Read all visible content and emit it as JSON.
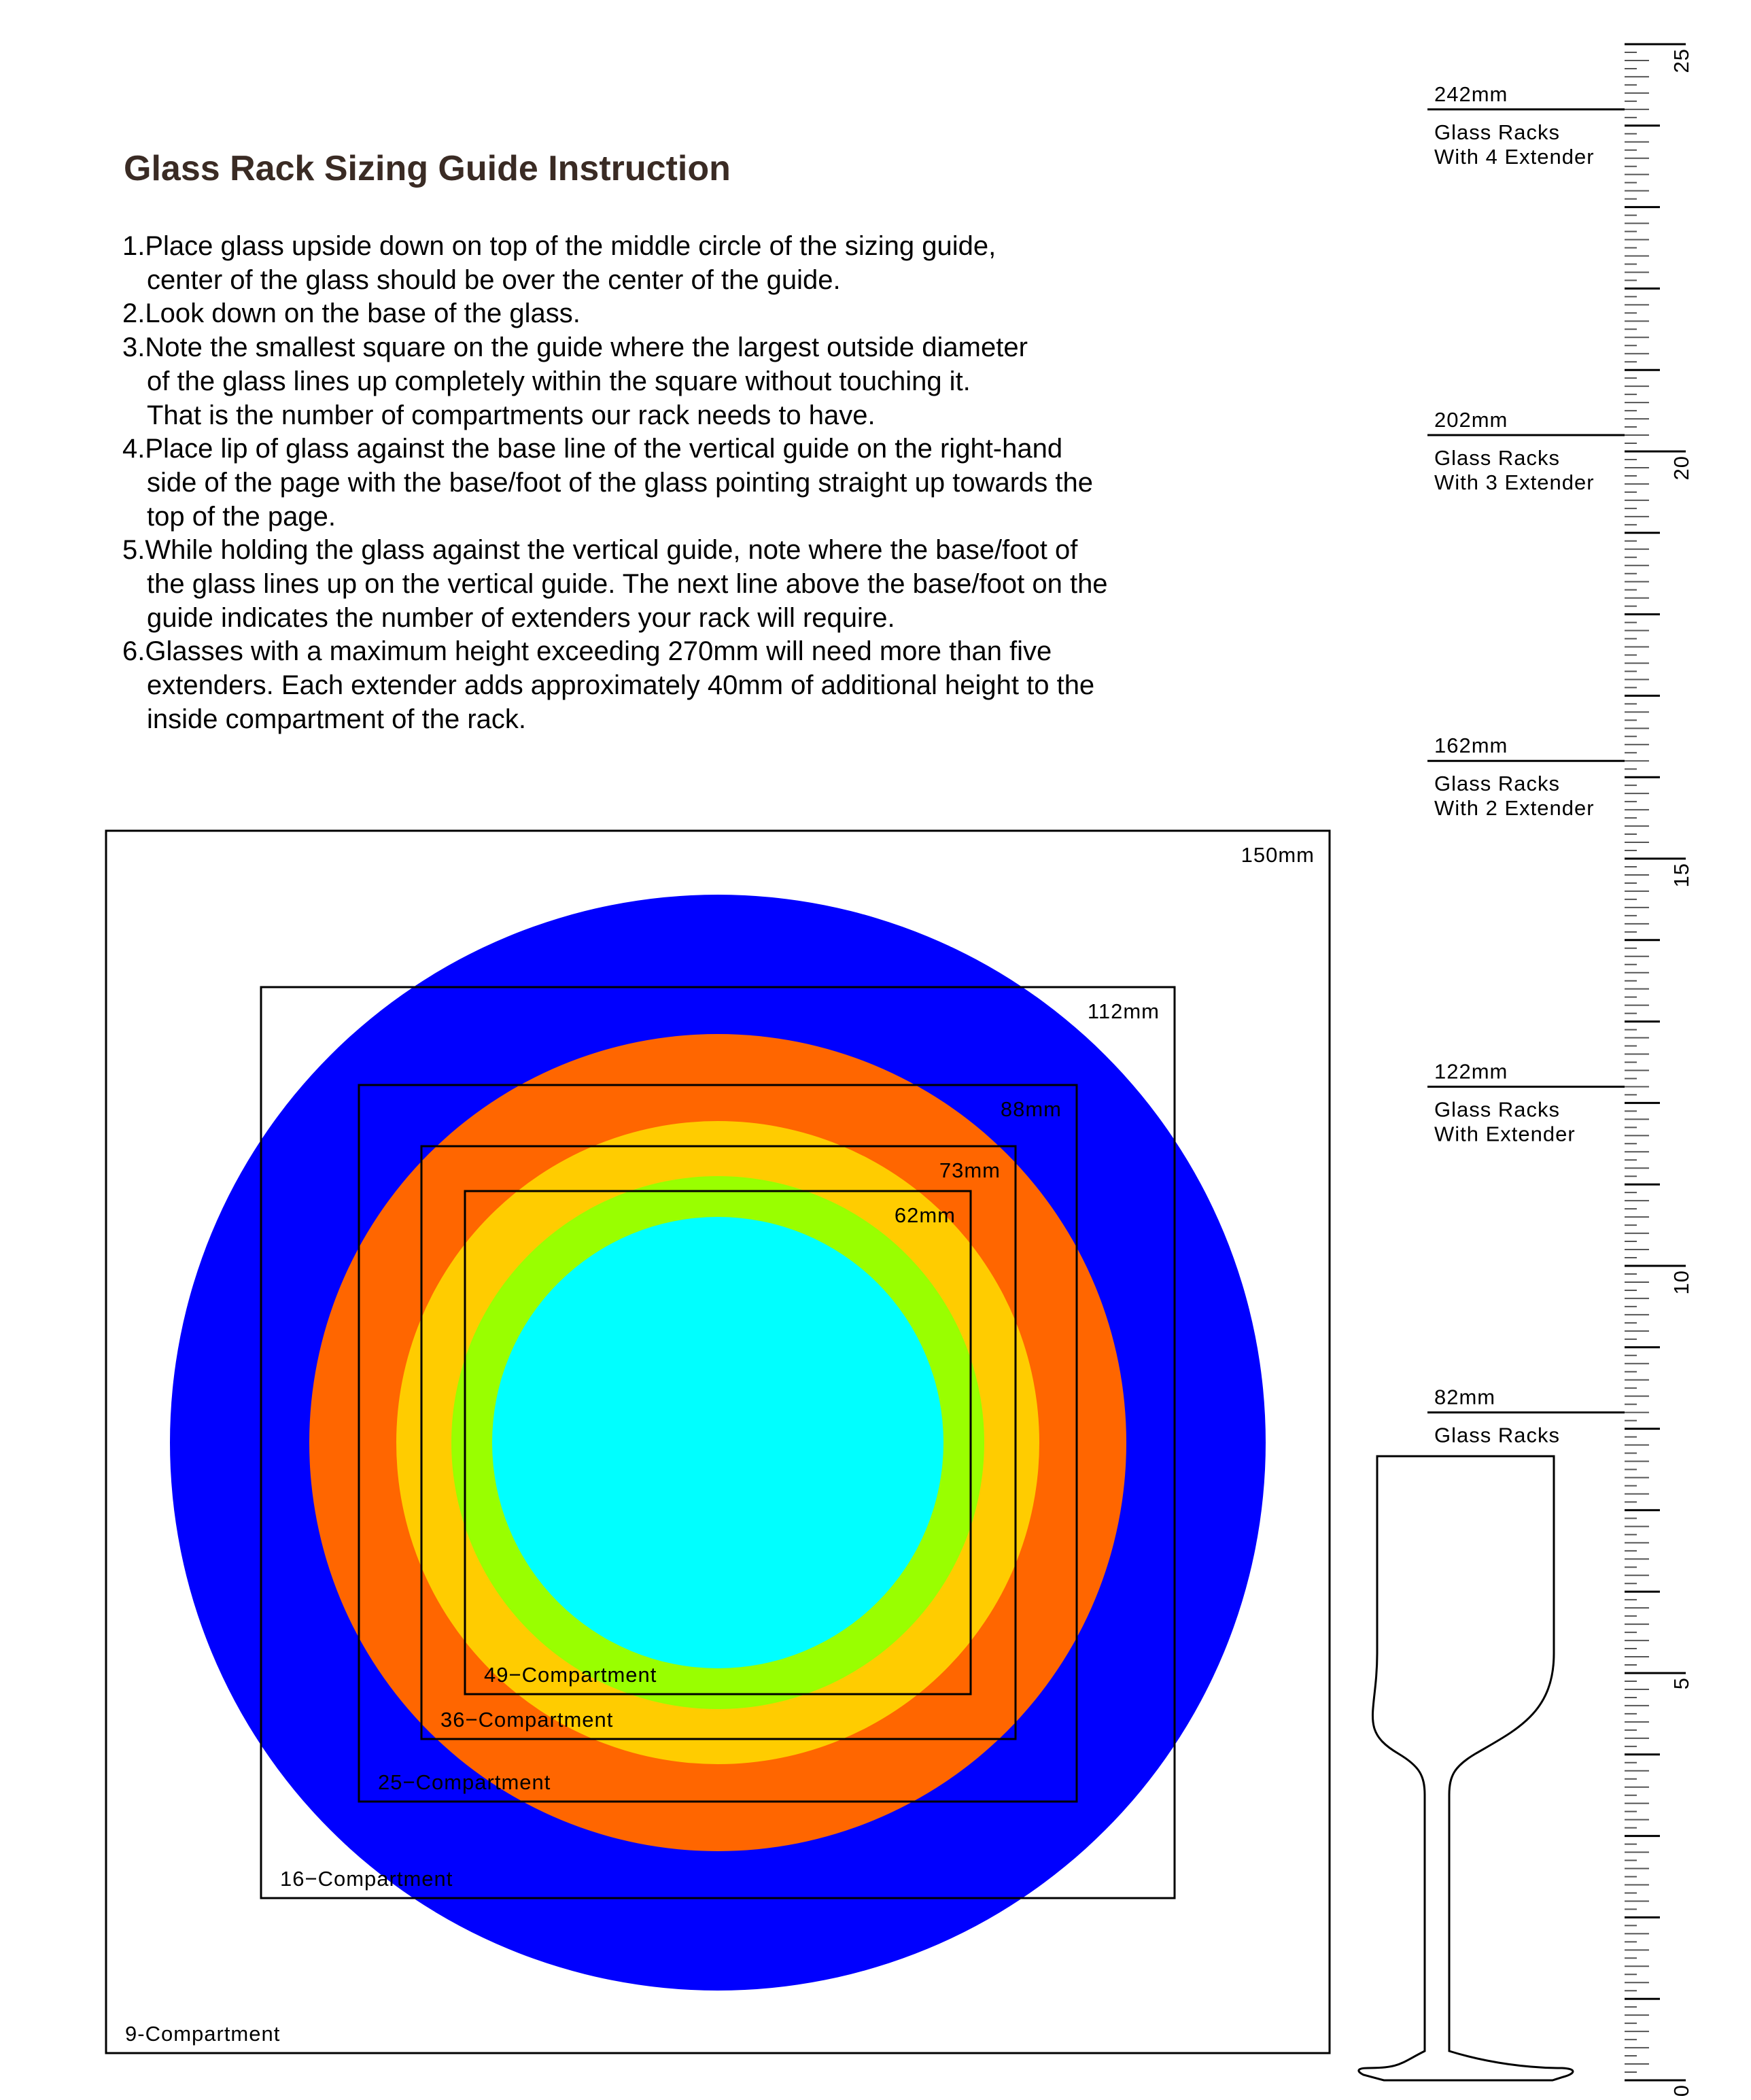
{
  "title": "Glass Rack Sizing Guide Instruction",
  "instructions": [
    [
      "1.Place glass upside down on top of the middle circle of the sizing guide,",
      "center of the glass should be over the center of the guide."
    ],
    [
      "2.Look down on the base of the glass."
    ],
    [
      "3.Note the smallest square on the guide where the largest outside diameter",
      "of the glass lines up completely within the square without touching it.",
      "That is the number of compartments our rack needs to have."
    ],
    [
      "4.Place lip of glass against the base line of the vertical guide on the right-hand",
      "side of the page with the base/foot of the glass pointing straight up towards the",
      "top of the page."
    ],
    [
      "5.While holding the glass against the vertical guide, note where the base/foot of",
      "the glass lines up on the vertical guide. The next line above the base/foot on the",
      "guide indicates the number of extenders your rack will require."
    ],
    [
      "6.Glasses with a maximum height exceeding 270mm will need more than five",
      "extenders. Each extender adds approximately 40mm of additional height to the",
      "inside compartment of the rack."
    ]
  ],
  "circles": [
    {
      "color": "#0000ff"
    },
    {
      "color": "#ff6600"
    },
    {
      "color": "#ffcc00"
    },
    {
      "color": "#99ff00"
    },
    {
      "color": "#00ffff"
    }
  ],
  "squares": [
    {
      "size": "150mm",
      "label": "9-Compartment"
    },
    {
      "size": "112mm",
      "label": "16−Compartment"
    },
    {
      "size": "88mm",
      "label": "25−Compartment"
    },
    {
      "size": "73mm",
      "label": "36−Compartment"
    },
    {
      "size": "62mm",
      "label": "49−Compartment"
    }
  ],
  "height_marks": [
    {
      "mm": 242,
      "value": "242mm",
      "line1": "Glass Racks",
      "line2": "With 4 Extender"
    },
    {
      "mm": 202,
      "value": "202mm",
      "line1": "Glass Racks",
      "line2": "With 3 Extender"
    },
    {
      "mm": 162,
      "value": "162mm",
      "line1": "Glass Racks",
      "line2": "With 2 Extender"
    },
    {
      "mm": 122,
      "value": "122mm",
      "line1": "Glass Racks",
      "line2": "With  Extender"
    },
    {
      "mm": 82,
      "value": "82mm",
      "line1": "Glass Racks",
      "line2": ""
    }
  ],
  "ruler": {
    "unit": "cm",
    "max": 25,
    "labels": [
      "0",
      "5",
      "10",
      "15",
      "20",
      "25"
    ]
  }
}
